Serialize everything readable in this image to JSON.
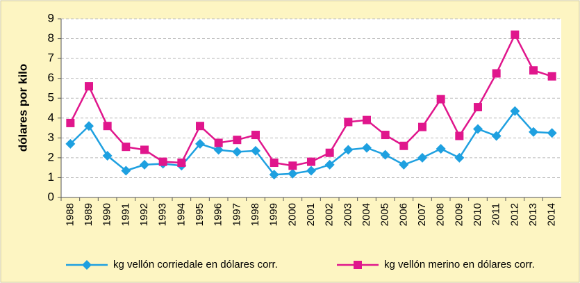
{
  "chart_data": {
    "type": "line",
    "categories": [
      "1988",
      "1989",
      "1990",
      "1991",
      "1992",
      "1993",
      "1994",
      "1995",
      "1996",
      "1997",
      "1998",
      "1999",
      "2000",
      "2001",
      "2002",
      "2003",
      "2004",
      "2005",
      "2006",
      "2007",
      "2008",
      "2009",
      "2010",
      "2011",
      "2012",
      "2013",
      "2014"
    ],
    "y_label": "dólares por kilo",
    "series": [
      {
        "name": "kg vellón corriedale en dólares corr.",
        "color": "#1ea0e0",
        "marker": "diamond",
        "values": [
          2.7,
          3.6,
          2.1,
          1.35,
          1.65,
          1.7,
          1.6,
          2.7,
          2.4,
          2.3,
          2.35,
          1.15,
          1.2,
          1.35,
          1.65,
          2.4,
          2.5,
          2.15,
          1.65,
          2.0,
          2.45,
          2.0,
          3.45,
          3.1,
          4.35,
          3.3,
          3.25
        ]
      },
      {
        "name": "kg vellón merino en dólares corr.",
        "color": "#e0168c",
        "marker": "square",
        "values": [
          3.75,
          5.6,
          3.6,
          2.55,
          2.4,
          1.8,
          1.75,
          3.6,
          2.75,
          2.9,
          3.15,
          1.75,
          1.6,
          1.8,
          2.25,
          3.8,
          3.9,
          3.15,
          2.6,
          3.55,
          4.95,
          3.1,
          4.55,
          6.25,
          8.2,
          6.4,
          6.1
        ]
      }
    ],
    "ylim": [
      0,
      9
    ],
    "yticks": [
      0,
      1,
      2,
      3,
      4,
      5,
      6,
      7,
      8,
      9
    ],
    "grid": true
  }
}
